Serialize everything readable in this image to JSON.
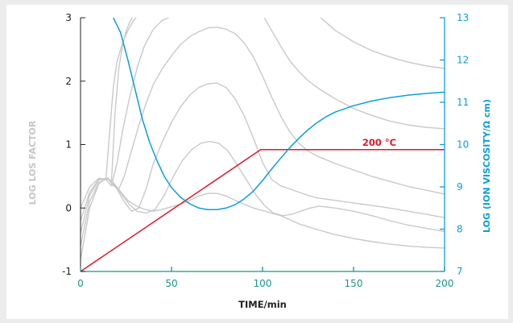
{
  "chart_data": {
    "type": "line",
    "xlabel": "TIME/min",
    "ylabel_left": "LOG LOS FACTOR",
    "ylabel_right": "LOG (ION VISCOSITY/Ω cm)",
    "xlim": [
      0,
      200
    ],
    "ylim_left": [
      -1,
      3
    ],
    "ylim_right": [
      7,
      13
    ],
    "x_ticks": [
      0,
      50,
      100,
      150,
      200
    ],
    "y_left_ticks": [
      -1,
      0,
      1,
      2,
      3
    ],
    "y_right_ticks": [
      7,
      8,
      9,
      10,
      11,
      12,
      13
    ],
    "grid": false,
    "annotations": [
      {
        "text": "200 °C",
        "x": 175,
        "y": 1.1
      }
    ],
    "colors": {
      "temperature": "#e0182d",
      "ion_viscosity": "#0aa0d8",
      "loss_factor": "#c9c9c9",
      "x_axis": "#17968a",
      "left_axis": "#c6c6c6",
      "right_axis": "#0aa0d8"
    },
    "series": [
      {
        "axis": "left",
        "x": [
          0,
          99,
          200
        ],
        "y": [
          -1,
          0.92,
          0.92
        ]
      },
      {
        "axis": "right",
        "x": [
          18,
          22,
          26,
          30,
          34,
          38,
          42,
          46,
          50,
          55,
          60,
          65,
          70,
          75,
          80,
          85,
          90,
          95,
          100,
          105,
          110,
          115,
          120,
          125,
          130,
          135,
          140,
          150,
          160,
          170,
          180,
          190,
          200
        ],
        "y": [
          13.0,
          12.65,
          12.0,
          11.3,
          10.6,
          10.05,
          9.62,
          9.25,
          8.98,
          8.75,
          8.6,
          8.5,
          8.46,
          8.46,
          8.5,
          8.58,
          8.72,
          8.9,
          9.15,
          9.42,
          9.68,
          9.93,
          10.15,
          10.35,
          10.52,
          10.66,
          10.77,
          10.92,
          11.03,
          11.11,
          11.17,
          11.21,
          11.24
        ]
      },
      {
        "axis": "left",
        "x": [
          0,
          5,
          10,
          14,
          18,
          22,
          26,
          30,
          35,
          40,
          45,
          50,
          55,
          60,
          65,
          70,
          75,
          80,
          85,
          90,
          95,
          100,
          110,
          120,
          130,
          140,
          150,
          160,
          170,
          180,
          190,
          200
        ],
        "y": [
          -0.82,
          0.0,
          0.38,
          0.47,
          0.4,
          0.26,
          0.12,
          0.04,
          -0.02,
          -0.05,
          -0.02,
          0.02,
          0.06,
          0.12,
          0.19,
          0.23,
          0.23,
          0.19,
          0.12,
          0.06,
          0.0,
          -0.04,
          -0.12,
          -0.25,
          -0.34,
          -0.42,
          -0.48,
          -0.53,
          -0.57,
          -0.6,
          -0.62,
          -0.63
        ]
      },
      {
        "axis": "left",
        "x": [
          0,
          5,
          10,
          15,
          19,
          23,
          27,
          31,
          36,
          41,
          46,
          51,
          56,
          61,
          66,
          71,
          76,
          81,
          86,
          91,
          96,
          101,
          106,
          111,
          116,
          121,
          126,
          131,
          140,
          150,
          160,
          170,
          180,
          190,
          200
        ],
        "y": [
          -0.6,
          0.1,
          0.4,
          0.47,
          0.37,
          0.2,
          0.05,
          -0.05,
          -0.08,
          -0.02,
          0.2,
          0.5,
          0.75,
          0.92,
          1.02,
          1.05,
          1.02,
          0.9,
          0.68,
          0.45,
          0.22,
          0.04,
          -0.08,
          -0.12,
          -0.1,
          -0.05,
          0.0,
          0.03,
          0.0,
          -0.05,
          -0.12,
          -0.2,
          -0.27,
          -0.32,
          -0.37
        ]
      },
      {
        "axis": "left",
        "x": [
          0,
          5,
          10,
          15,
          20,
          24,
          28,
          32,
          36,
          40,
          45,
          50,
          55,
          60,
          65,
          70,
          75,
          80,
          85,
          90,
          95,
          100,
          105,
          110,
          115,
          120,
          125,
          130,
          140,
          150,
          160,
          170,
          180,
          190,
          200
        ],
        "y": [
          -0.4,
          0.2,
          0.44,
          0.47,
          0.3,
          0.1,
          -0.05,
          0.0,
          0.3,
          0.7,
          1.05,
          1.35,
          1.6,
          1.78,
          1.9,
          1.96,
          1.97,
          1.9,
          1.72,
          1.45,
          1.1,
          0.72,
          0.45,
          0.35,
          0.3,
          0.25,
          0.2,
          0.16,
          0.12,
          0.08,
          0.04,
          0.0,
          -0.05,
          -0.1,
          -0.15
        ]
      },
      {
        "axis": "left",
        "x": [
          0,
          5,
          10,
          15,
          18,
          21,
          24,
          28,
          32,
          36,
          40,
          45,
          50,
          55,
          60,
          65,
          70,
          75,
          80,
          85,
          90,
          95,
          100,
          105,
          110,
          115,
          120,
          125,
          130,
          140,
          150,
          160,
          170,
          180,
          190,
          200
        ],
        "y": [
          -0.2,
          0.25,
          0.45,
          0.47,
          0.35,
          0.3,
          0.5,
          0.9,
          1.3,
          1.65,
          1.95,
          2.2,
          2.4,
          2.58,
          2.7,
          2.78,
          2.84,
          2.85,
          2.82,
          2.75,
          2.6,
          2.38,
          2.08,
          1.75,
          1.45,
          1.2,
          1.02,
          0.9,
          0.82,
          0.7,
          0.6,
          0.5,
          0.42,
          0.34,
          0.28,
          0.22
        ]
      },
      {
        "axis": "left",
        "x": [
          0,
          5,
          10,
          14,
          17,
          20,
          23,
          27,
          31,
          35,
          40,
          45,
          50
        ],
        "y": [
          0.0,
          0.33,
          0.47,
          0.45,
          0.35,
          0.7,
          1.2,
          1.75,
          2.2,
          2.55,
          2.82,
          2.96,
          3.02
        ]
      },
      {
        "axis": "left",
        "x": [
          100,
          105,
          110,
          115,
          120,
          125,
          130,
          140,
          150,
          160,
          170,
          180,
          190,
          200
        ],
        "y": [
          3.05,
          2.8,
          2.55,
          2.32,
          2.15,
          2.01,
          1.9,
          1.72,
          1.57,
          1.46,
          1.37,
          1.31,
          1.27,
          1.25
        ]
      },
      {
        "axis": "left",
        "x": [
          14,
          16,
          18,
          20,
          23,
          26,
          29,
          32
        ],
        "y": [
          0.47,
          1.2,
          1.9,
          2.3,
          2.6,
          2.8,
          2.95,
          3.05
        ]
      },
      {
        "axis": "left",
        "x": [
          17,
          19,
          21,
          23,
          25,
          27,
          29
        ],
        "y": [
          0.4,
          1.5,
          2.2,
          2.55,
          2.78,
          2.93,
          3.03
        ]
      },
      {
        "axis": "left",
        "x": [
          130,
          140,
          150,
          160,
          170,
          180,
          190,
          200
        ],
        "y": [
          3.05,
          2.8,
          2.62,
          2.48,
          2.38,
          2.3,
          2.24,
          2.2
        ]
      }
    ]
  }
}
